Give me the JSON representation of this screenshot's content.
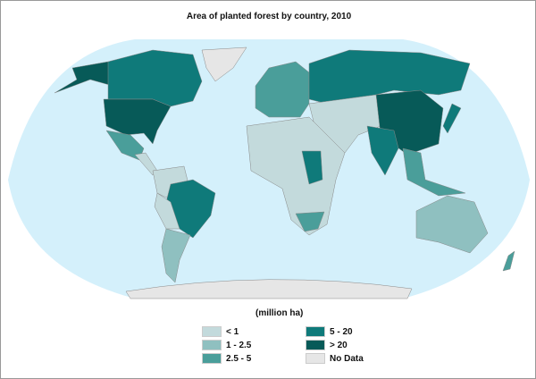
{
  "title": "Area of planted forest by country, 2010",
  "legend": {
    "unit": "(million ha)",
    "items": [
      {
        "label": "< 1",
        "color": "#c3dadc"
      },
      {
        "label": "1 - 2.5",
        "color": "#8fc0c0"
      },
      {
        "label": "2.5 - 5",
        "color": "#4a9e9a"
      },
      {
        "label": "5 - 20",
        "color": "#0f7a7a"
      },
      {
        "label": "> 20",
        "color": "#075a58"
      },
      {
        "label": "No Data",
        "color": "#e6e6e6"
      }
    ]
  },
  "colors": {
    "ocean": "#d4f0fb",
    "border": "#888888"
  }
}
